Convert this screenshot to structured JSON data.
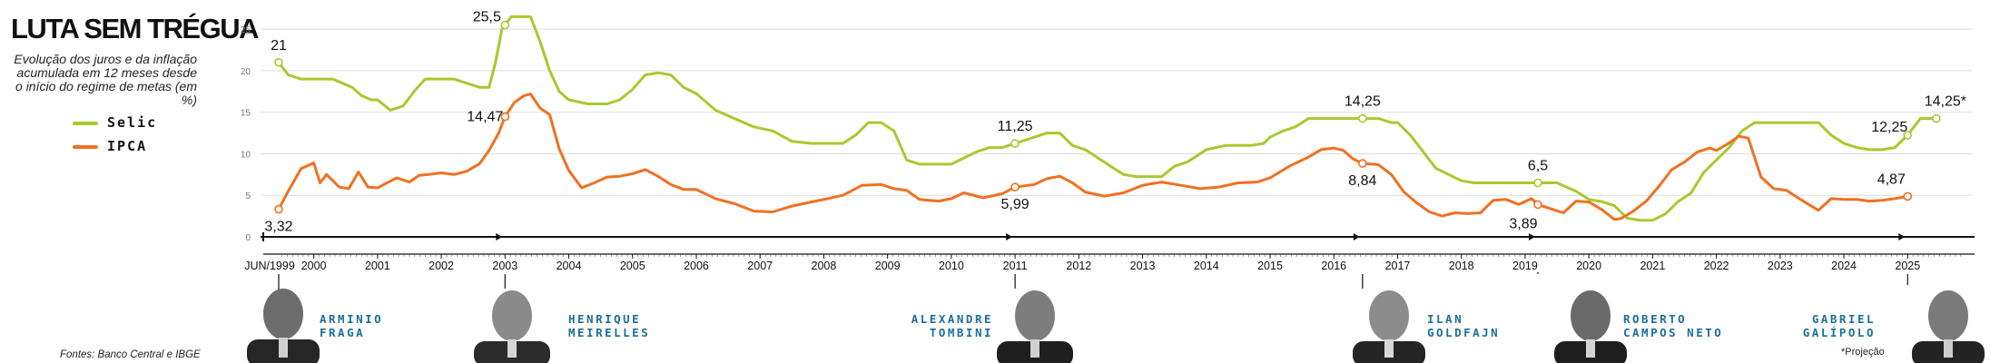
{
  "header": {
    "title": "LUTA SEM TRÉGUA",
    "subtitle": "Evolução dos juros e da inflação acumulada em 12 meses desde o início do regime de metas (em %)",
    "sources": "Fontes: Banco Central e IBGE",
    "note": "*Projeção"
  },
  "legend": {
    "selic": "Selic",
    "ipca": "IPCA"
  },
  "colors": {
    "selic": "#a8c92f",
    "ipca": "#ef7122",
    "axis": "#111111",
    "grid": "#dddddd",
    "names": "#1c6f97"
  },
  "presidents": [
    {
      "name_line1": "ARMINIO",
      "name_line2": "FRAGA",
      "icon": "portrait-arminio-fraga"
    },
    {
      "name_line1": "HENRIQUE",
      "name_line2": "MEIRELLES",
      "icon": "portrait-henrique-meirelles"
    },
    {
      "name_line1": "ALEXANDRE",
      "name_line2": "TOMBINI",
      "icon": "portrait-alexandre-tombini"
    },
    {
      "name_line1": "ILAN",
      "name_line2": "GOLDFAJN",
      "icon": "portrait-ilan-goldfajn"
    },
    {
      "name_line1": "ROBERTO",
      "name_line2": "CAMPOS NETO",
      "icon": "portrait-roberto-campos-neto"
    },
    {
      "name_line1": "GABRIEL",
      "name_line2": "GALÍPOLO",
      "icon": "portrait-gabriel-galipolo"
    }
  ],
  "chart_data": {
    "type": "line",
    "title": "LUTA SEM TRÉGUA",
    "ylabel": "%",
    "ylim": [
      0,
      26
    ],
    "yticks": [
      0,
      5,
      10,
      15,
      20,
      25
    ],
    "grid": true,
    "xlim": [
      1999.45,
      2025.95
    ],
    "x_tick_labels": [
      "JUN/1999",
      "2000",
      "2001",
      "2002",
      "2003",
      "2004",
      "2005",
      "2006",
      "2007",
      "2008",
      "2009",
      "2010",
      "2011",
      "2012",
      "2013",
      "2014",
      "2015",
      "2016",
      "2017",
      "2018",
      "2019",
      "2020",
      "2021",
      "2022",
      "2023",
      "2024",
      "2025"
    ],
    "x_tick_values": [
      1999.45,
      2000,
      2001,
      2002,
      2003,
      2004,
      2005,
      2006,
      2007,
      2008,
      2009,
      2010,
      2011,
      2012,
      2013,
      2014,
      2015,
      2016,
      2017,
      2018,
      2019,
      2020,
      2021,
      2022,
      2023,
      2024,
      2025
    ],
    "terms": [
      1999.45,
      2003.0,
      2011.0,
      2016.45,
      2019.2,
      2025.0
    ],
    "series": [
      {
        "name": "Selic",
        "x": [
          1999.45,
          1999.6,
          1999.8,
          2000.0,
          2000.3,
          2000.6,
          2000.75,
          2000.9,
          2001.0,
          2001.2,
          2001.4,
          2001.6,
          2001.75,
          2001.9,
          2002.0,
          2002.2,
          2002.4,
          2002.6,
          2002.75,
          2002.85,
          2002.95,
          2003.0,
          2003.1,
          2003.2,
          2003.4,
          2003.55,
          2003.7,
          2003.85,
          2004.0,
          2004.3,
          2004.6,
          2004.8,
          2005.0,
          2005.2,
          2005.4,
          2005.6,
          2005.8,
          2006.0,
          2006.3,
          2006.6,
          2006.9,
          2007.2,
          2007.5,
          2007.8,
          2008.0,
          2008.3,
          2008.5,
          2008.7,
          2008.9,
          2009.1,
          2009.3,
          2009.5,
          2009.8,
          2010.0,
          2010.2,
          2010.4,
          2010.6,
          2010.8,
          2011.0,
          2011.3,
          2011.5,
          2011.7,
          2011.9,
          2012.1,
          2012.3,
          2012.5,
          2012.7,
          2012.9,
          2013.0,
          2013.3,
          2013.5,
          2013.7,
          2013.9,
          2014.0,
          2014.3,
          2014.5,
          2014.7,
          2014.9,
          2015.0,
          2015.2,
          2015.4,
          2015.6,
          2015.8,
          2016.0,
          2016.45,
          2016.7,
          2016.9,
          2017.0,
          2017.2,
          2017.4,
          2017.6,
          2017.8,
          2018.0,
          2018.2,
          2018.5,
          2019.0,
          2019.2,
          2019.5,
          2019.8,
          2020.0,
          2020.2,
          2020.4,
          2020.6,
          2020.8,
          2021.0,
          2021.2,
          2021.4,
          2021.6,
          2021.8,
          2022.0,
          2022.2,
          2022.4,
          2022.6,
          2022.8,
          2023.0,
          2023.3,
          2023.6,
          2023.8,
          2024.0,
          2024.2,
          2024.4,
          2024.6,
          2024.8,
          2025.0,
          2025.2,
          2025.45
        ],
        "values": [
          21,
          19.5,
          19,
          19,
          19,
          18,
          17,
          16.5,
          16.5,
          15.25,
          15.75,
          17.75,
          19,
          19,
          19,
          19,
          18.5,
          18,
          18,
          21,
          25,
          25.5,
          26.5,
          26.5,
          26.5,
          23.5,
          20,
          17.5,
          16.5,
          16,
          16,
          16.5,
          17.75,
          19.5,
          19.75,
          19.5,
          18,
          17.25,
          15.25,
          14.25,
          13.25,
          12.75,
          11.5,
          11.25,
          11.25,
          11.25,
          12.25,
          13.75,
          13.75,
          12.75,
          9.25,
          8.75,
          8.75,
          8.75,
          9.5,
          10.25,
          10.75,
          10.75,
          11.25,
          12,
          12.5,
          12.5,
          11,
          10.5,
          9.5,
          8.5,
          7.5,
          7.25,
          7.25,
          7.25,
          8.5,
          9,
          10,
          10.5,
          11,
          11,
          11,
          11.25,
          12,
          12.75,
          13.25,
          14.25,
          14.25,
          14.25,
          14.25,
          14.25,
          13.75,
          13.75,
          12.25,
          10.25,
          8.25,
          7.5,
          6.75,
          6.5,
          6.5,
          6.5,
          6.5,
          6.5,
          5.5,
          4.5,
          4.25,
          3.75,
          2.25,
          2.0,
          2.0,
          2.75,
          4.25,
          5.25,
          7.75,
          9.25,
          10.75,
          12.75,
          13.75,
          13.75,
          13.75,
          13.75,
          13.75,
          12.25,
          11.25,
          10.75,
          10.5,
          10.5,
          10.75,
          12.25,
          14.25,
          14.25
        ]
      },
      {
        "name": "IPCA",
        "x": [
          1999.45,
          1999.6,
          1999.8,
          2000.0,
          2000.1,
          2000.2,
          2000.4,
          2000.55,
          2000.7,
          2000.85,
          2001.0,
          2001.1,
          2001.3,
          2001.5,
          2001.65,
          2001.8,
          2002.0,
          2002.2,
          2002.4,
          2002.6,
          2002.75,
          2002.9,
          2003.0,
          2003.15,
          2003.3,
          2003.4,
          2003.55,
          2003.7,
          2003.85,
          2004.0,
          2004.2,
          2004.4,
          2004.6,
          2004.8,
          2005.0,
          2005.2,
          2005.4,
          2005.6,
          2005.8,
          2006.0,
          2006.3,
          2006.6,
          2006.9,
          2007.2,
          2007.5,
          2007.8,
          2008.0,
          2008.3,
          2008.6,
          2008.9,
          2009.1,
          2009.3,
          2009.5,
          2009.8,
          2010.0,
          2010.2,
          2010.5,
          2010.8,
          2011.0,
          2011.3,
          2011.5,
          2011.7,
          2011.9,
          2012.1,
          2012.4,
          2012.7,
          2013.0,
          2013.3,
          2013.6,
          2013.9,
          2014.2,
          2014.5,
          2014.8,
          2015.0,
          2015.3,
          2015.6,
          2015.8,
          2016.0,
          2016.15,
          2016.3,
          2016.45,
          2016.7,
          2016.9,
          2017.1,
          2017.3,
          2017.5,
          2017.7,
          2017.9,
          2018.1,
          2018.3,
          2018.5,
          2018.7,
          2018.9,
          2019.1,
          2019.2,
          2019.4,
          2019.6,
          2019.8,
          2020.0,
          2020.2,
          2020.4,
          2020.5,
          2020.7,
          2020.9,
          2021.1,
          2021.3,
          2021.5,
          2021.7,
          2021.9,
          2022.0,
          2022.2,
          2022.35,
          2022.5,
          2022.7,
          2022.9,
          2023.1,
          2023.3,
          2023.45,
          2023.6,
          2023.8,
          2024.0,
          2024.2,
          2024.4,
          2024.6,
          2024.8,
          2025.0
        ],
        "values": [
          3.32,
          5.5,
          8.2,
          8.9,
          6.5,
          7.5,
          6,
          5.8,
          7.8,
          6,
          5.9,
          6.3,
          7.1,
          6.6,
          7.4,
          7.5,
          7.7,
          7.5,
          7.9,
          8.8,
          10.4,
          12.5,
          14.47,
          16.2,
          17.0,
          17.2,
          15.5,
          14.7,
          10.6,
          8,
          5.9,
          6.5,
          7.2,
          7.3,
          7.6,
          8.1,
          7.3,
          6.3,
          5.7,
          5.7,
          4.6,
          4.0,
          3.1,
          3.0,
          3.7,
          4.2,
          4.5,
          5.0,
          6.2,
          6.3,
          5.8,
          5.6,
          4.5,
          4.3,
          4.6,
          5.3,
          4.7,
          5.2,
          5.99,
          6.3,
          7.0,
          7.3,
          6.5,
          5.4,
          4.9,
          5.3,
          6.2,
          6.6,
          6.2,
          5.8,
          6.0,
          6.5,
          6.6,
          7.1,
          8.5,
          9.6,
          10.5,
          10.7,
          10.4,
          9.4,
          8.84,
          8.7,
          7.5,
          5.4,
          4.1,
          3.0,
          2.5,
          2.9,
          2.8,
          2.9,
          4.4,
          4.5,
          3.9,
          4.6,
          3.89,
          3.4,
          2.9,
          4.3,
          4.2,
          3.3,
          2.1,
          2.2,
          3.1,
          4.3,
          6.1,
          8.1,
          9.0,
          10.2,
          10.7,
          10.4,
          11.3,
          12.1,
          11.9,
          7.2,
          5.8,
          5.6,
          4.6,
          3.9,
          3.2,
          4.6,
          4.5,
          4.5,
          4.3,
          4.4,
          4.6,
          4.87
        ]
      }
    ],
    "annotations": [
      {
        "series": "Selic",
        "x": 1999.45,
        "value": 21,
        "label": "21"
      },
      {
        "series": "Selic",
        "x": 2003.0,
        "value": 25.5,
        "label": "25,5"
      },
      {
        "series": "Selic",
        "x": 2011.0,
        "value": 11.25,
        "label": "11,25"
      },
      {
        "series": "Selic",
        "x": 2016.45,
        "value": 14.25,
        "label": "14,25"
      },
      {
        "series": "Selic",
        "x": 2019.2,
        "value": 6.5,
        "label": "6,5"
      },
      {
        "series": "Selic",
        "x": 2025.0,
        "value": 12.25,
        "label": "12,25"
      },
      {
        "series": "Selic",
        "x": 2025.45,
        "value": 14.25,
        "label": "14,25*"
      },
      {
        "series": "IPCA",
        "x": 1999.45,
        "value": 3.32,
        "label": "3,32"
      },
      {
        "series": "IPCA",
        "x": 2003.0,
        "value": 14.47,
        "label": "14,47"
      },
      {
        "series": "IPCA",
        "x": 2011.0,
        "value": 5.99,
        "label": "5,99"
      },
      {
        "series": "IPCA",
        "x": 2016.45,
        "value": 8.84,
        "label": "8,84"
      },
      {
        "series": "IPCA",
        "x": 2019.2,
        "value": 3.89,
        "label": "3,89"
      },
      {
        "series": "IPCA",
        "x": 2025.0,
        "value": 4.87,
        "label": "4,87"
      }
    ]
  }
}
